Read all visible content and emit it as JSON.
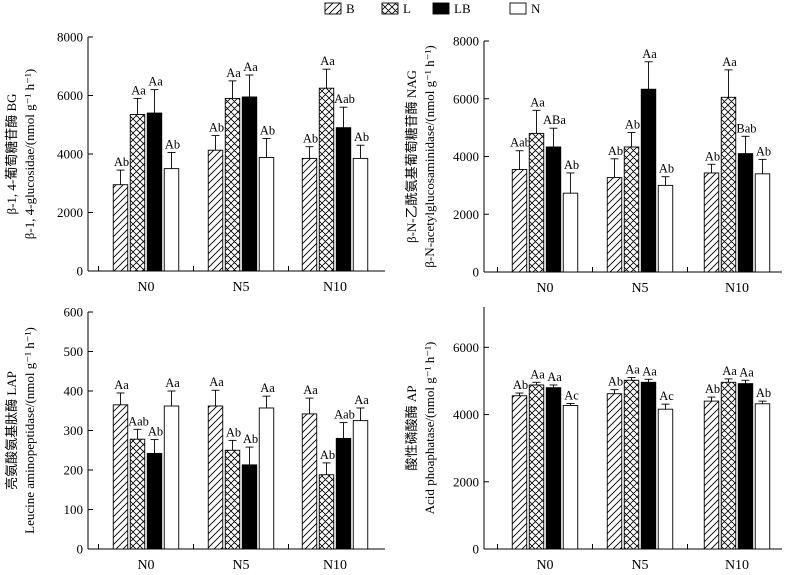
{
  "legend": [
    {
      "key": "B",
      "label": "B",
      "pattern": "diag"
    },
    {
      "key": "L",
      "label": "L",
      "pattern": "cross"
    },
    {
      "key": "LB",
      "label": "LB",
      "pattern": "solid"
    },
    {
      "key": "N",
      "label": "N",
      "pattern": "empty"
    }
  ],
  "chart_data": [
    {
      "type": "bar",
      "categories": [
        "N0",
        "N5",
        "N10"
      ],
      "ylabel_cn": "β-1, 4-葡萄糖苷酶 BG",
      "ylabel_en": "β-1, 4-glucosidae/(nmol g⁻¹ h⁻¹)",
      "ylim": [
        0,
        8000
      ],
      "yticks": [
        0,
        2000,
        4000,
        6000,
        8000
      ],
      "series": [
        {
          "name": "B",
          "values": [
            2950,
            4130,
            3850
          ],
          "errors": [
            500,
            500,
            400
          ],
          "labels": [
            "Ab",
            "Ab",
            "Ab"
          ]
        },
        {
          "name": "L",
          "values": [
            5350,
            5900,
            6250
          ],
          "errors": [
            550,
            600,
            650
          ],
          "labels": [
            "Aa",
            "Aa",
            "Aa"
          ]
        },
        {
          "name": "LB",
          "values": [
            5400,
            5950,
            4900
          ],
          "errors": [
            800,
            750,
            700
          ],
          "labels": [
            "Aa",
            "Aa",
            "Aab"
          ]
        },
        {
          "name": "N",
          "values": [
            3500,
            3880,
            3850
          ],
          "errors": [
            550,
            650,
            450
          ],
          "labels": [
            "Ab",
            "Ab",
            "Ab"
          ]
        }
      ]
    },
    {
      "type": "bar",
      "categories": [
        "N0",
        "N5",
        "N10"
      ],
      "ylabel_cn": "β-N-乙酰氨基葡萄糖苷酶 NAG",
      "ylabel_en": "β-N-acetylglucosaminidase/(nmol g⁻¹ h⁻¹)",
      "ylim": [
        0,
        8000
      ],
      "yticks": [
        0,
        2000,
        4000,
        6000,
        8000
      ],
      "series": [
        {
          "name": "B",
          "values": [
            3550,
            3270,
            3430
          ],
          "errors": [
            650,
            650,
            300
          ],
          "labels": [
            "Aab",
            "Ab",
            "Ab"
          ]
        },
        {
          "name": "L",
          "values": [
            4800,
            4330,
            6050
          ],
          "errors": [
            800,
            500,
            950
          ],
          "labels": [
            "Aa",
            "Ab",
            "Aa"
          ]
        },
        {
          "name": "LB",
          "values": [
            4330,
            6330,
            4100
          ],
          "errors": [
            650,
            950,
            600
          ],
          "labels": [
            "ABa",
            "Aa",
            "Bab"
          ]
        },
        {
          "name": "N",
          "values": [
            2730,
            3000,
            3400
          ],
          "errors": [
            700,
            300,
            500
          ],
          "labels": [
            "Ab",
            "Ab",
            "Ab"
          ]
        }
      ]
    },
    {
      "type": "bar",
      "categories": [
        "N0",
        "N5",
        "N10"
      ],
      "ylabel_cn": "亮氨酸氨基肽酶 LAP",
      "ylabel_en": "Leucine aminopeptidase/(nmol g⁻¹ h⁻¹)",
      "ylim": [
        0,
        600
      ],
      "yticks": [
        0,
        100,
        200,
        300,
        400,
        500,
        600
      ],
      "series": [
        {
          "name": "B",
          "values": [
            365,
            362,
            342
          ],
          "errors": [
            30,
            40,
            40
          ],
          "labels": [
            "Aa",
            "Aa",
            "Aa"
          ]
        },
        {
          "name": "L",
          "values": [
            278,
            250,
            188
          ],
          "errors": [
            25,
            25,
            30
          ],
          "labels": [
            "Aab",
            "Ab",
            "Ab"
          ]
        },
        {
          "name": "LB",
          "values": [
            242,
            213,
            280
          ],
          "errors": [
            35,
            45,
            40
          ],
          "labels": [
            "Ab",
            "Ab",
            "Aab"
          ]
        },
        {
          "name": "N",
          "values": [
            362,
            357,
            325
          ],
          "errors": [
            38,
            30,
            32
          ],
          "labels": [
            "Aa",
            "Aa",
            "Aa"
          ]
        }
      ]
    },
    {
      "type": "bar",
      "categories": [
        "N0",
        "N5",
        "N10"
      ],
      "ylabel_cn": "酸性磷酸酶 AP",
      "ylabel_en": "Acid phoaphatase/(nmol g⁻¹ h⁻¹)",
      "ylim": [
        0,
        7200
      ],
      "yticks": [
        0,
        2000,
        4000,
        6000
      ],
      "series": [
        {
          "name": "B",
          "values": [
            4560,
            4620,
            4400
          ],
          "errors": [
            80,
            120,
            120
          ],
          "labels": [
            "Ab",
            "Ab",
            "Ab"
          ]
        },
        {
          "name": "L",
          "values": [
            4880,
            5020,
            4960
          ],
          "errors": [
            80,
            80,
            100
          ],
          "labels": [
            "Aa",
            "Aa",
            "Aa"
          ]
        },
        {
          "name": "LB",
          "values": [
            4800,
            4960,
            4920
          ],
          "errors": [
            80,
            90,
            100
          ],
          "labels": [
            "Aa",
            "Aa",
            "Aa"
          ]
        },
        {
          "name": "N",
          "values": [
            4270,
            4160,
            4320
          ],
          "errors": [
            60,
            150,
            80
          ],
          "labels": [
            "Ac",
            "Ac",
            "Ab"
          ]
        }
      ]
    }
  ]
}
